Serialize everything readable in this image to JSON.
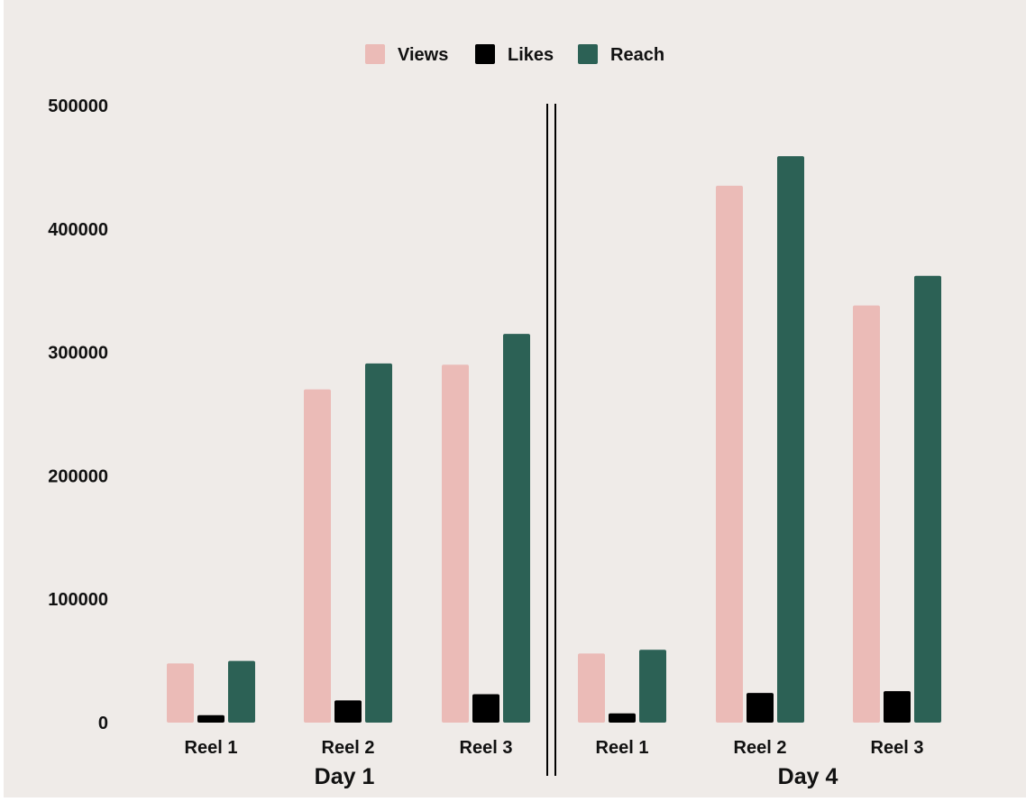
{
  "chart_data": {
    "type": "bar",
    "colors": {
      "background": "#efebe8",
      "Views": "#ebbbb7",
      "Likes": "#000000",
      "Reach": "#2c6155"
    },
    "legend_position": "top-center",
    "grid": false,
    "ylim": [
      0,
      500000
    ],
    "yticks": [
      "0",
      "100000",
      "200000",
      "300000",
      "400000",
      "500000"
    ],
    "groups": [
      {
        "label": "Day 1",
        "categories": [
          "Reel 1",
          "Reel 2",
          "Reel 3"
        ],
        "series": [
          {
            "name": "Views",
            "values": [
              48000,
              270000,
              290000
            ]
          },
          {
            "name": "Likes",
            "values": [
              6000,
              18000,
              23000
            ]
          },
          {
            "name": "Reach",
            "values": [
              50000,
              291000,
              315000
            ]
          }
        ]
      },
      {
        "label": "Day 4",
        "categories": [
          "Reel 1",
          "Reel 2",
          "Reel 3"
        ],
        "series": [
          {
            "name": "Views",
            "values": [
              56000,
              435000,
              338000
            ]
          },
          {
            "name": "Likes",
            "values": [
              7500,
              24000,
              25500
            ]
          },
          {
            "name": "Reach",
            "values": [
              59000,
              459000,
              362000
            ]
          }
        ]
      }
    ]
  }
}
